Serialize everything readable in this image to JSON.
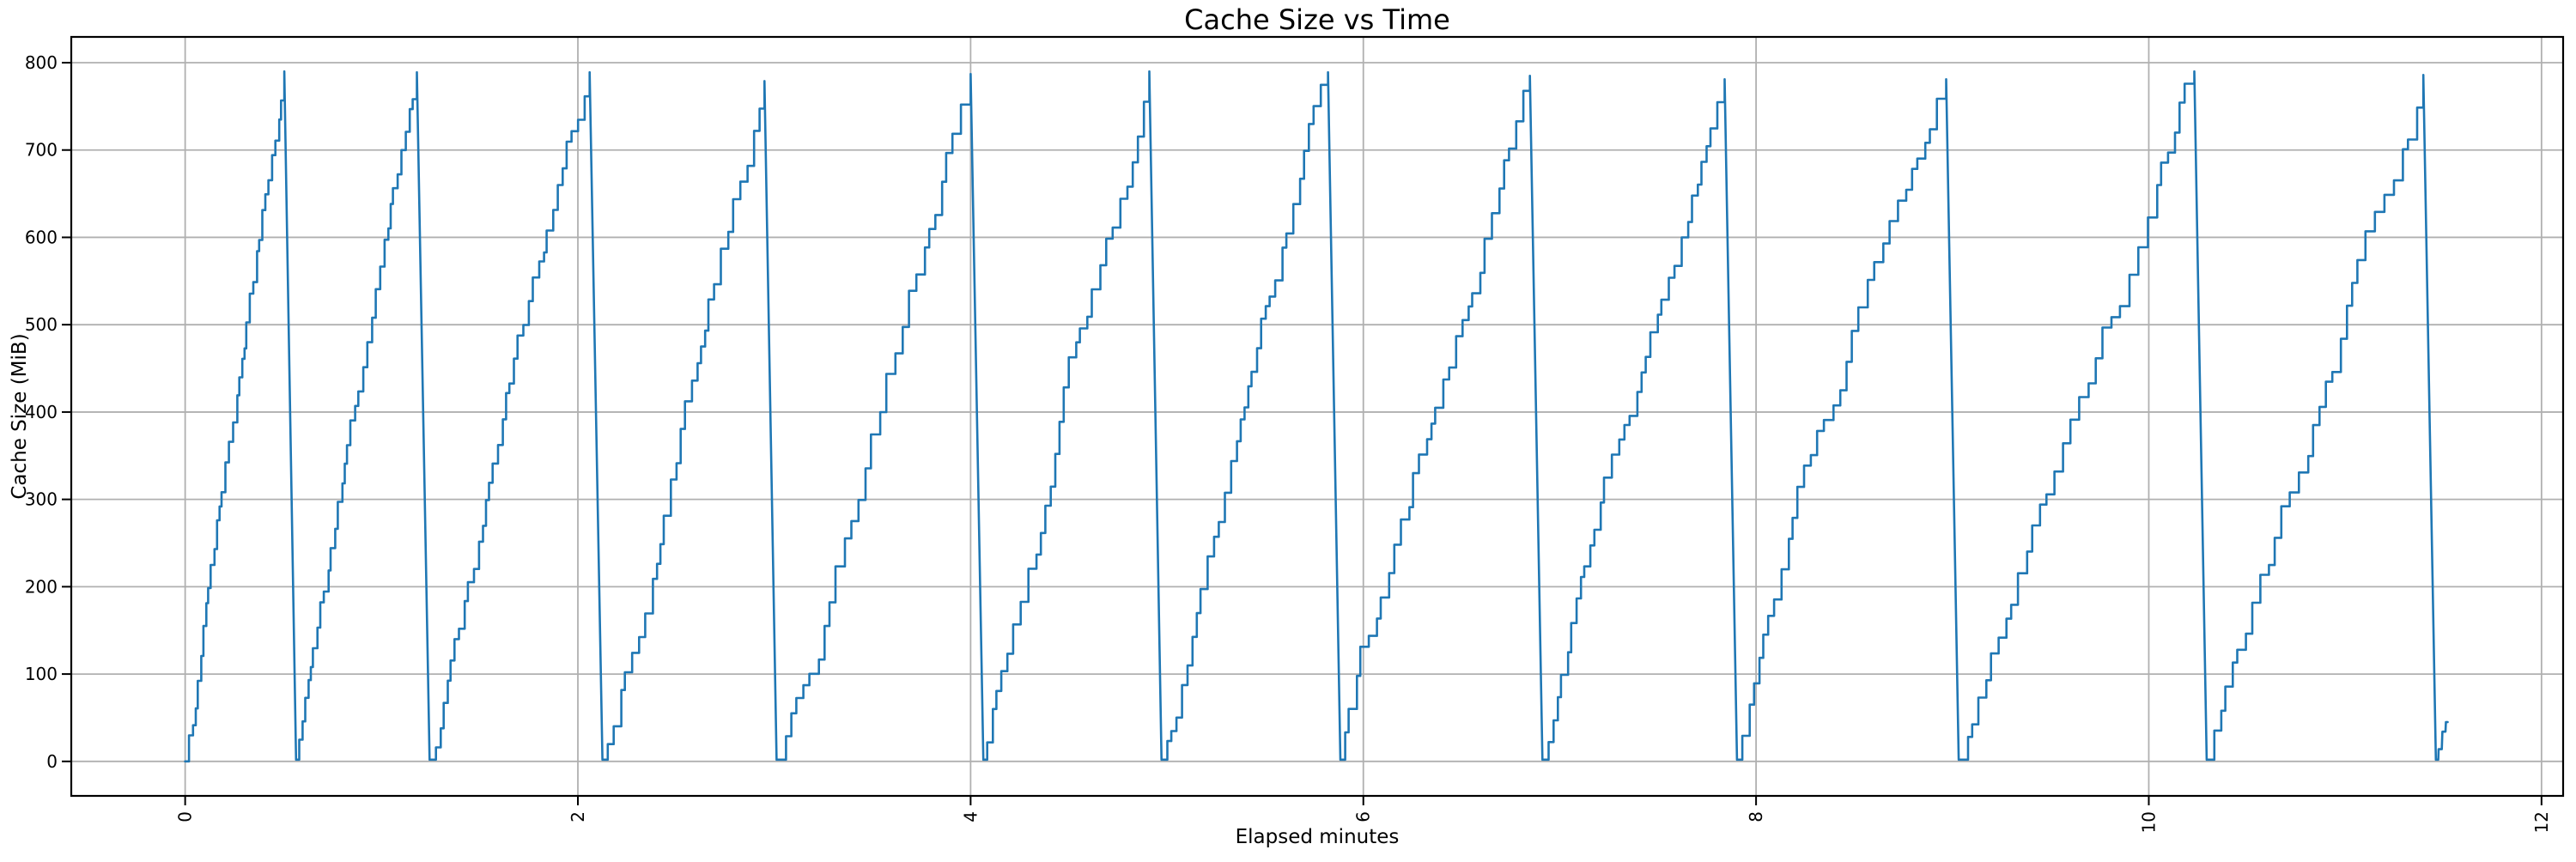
{
  "figure": {
    "title": "Cache Size vs Time",
    "xlabel": "Elapsed minutes",
    "ylabel": "Cache Size (MiB)"
  },
  "colors": {
    "line": "#1f77b4",
    "grid": "#b0b0b0",
    "spine": "#000000",
    "text": "#000000",
    "background": "#ffffff"
  },
  "chart_data": {
    "type": "line",
    "title": "Cache Size vs Time",
    "xlabel": "Elapsed minutes",
    "ylabel": "Cache Size (MiB)",
    "series_name": "cache size",
    "xticks": [
      0,
      2,
      4,
      6,
      8,
      10,
      12
    ],
    "yticks": [
      0,
      100,
      200,
      300,
      400,
      500,
      600,
      700,
      800
    ],
    "xlim": [
      -0.58,
      12.11
    ],
    "ylim": [
      -39.5,
      829.5
    ],
    "grid": true,
    "legend": false,
    "x_tick_rotation_deg": 90,
    "pattern": "stepped sawtooth: cache fills from ~0 to ~790 MiB in irregular ~20-35 MiB steps every ~2s, then is evicted abruptly to ~0 and refills; 12 cycles over ~11.5 minutes",
    "steps_per_fill": 30,
    "cycles": [
      {
        "start_min": 0.0,
        "start_mib": 0,
        "peak_min": 0.505,
        "peak_mib": 790,
        "reset_min": 0.565,
        "reset_mib": 2
      },
      {
        "start_min": 0.565,
        "start_mib": 2,
        "peak_min": 1.18,
        "peak_mib": 789,
        "reset_min": 1.245,
        "reset_mib": 2
      },
      {
        "start_min": 1.245,
        "start_mib": 2,
        "peak_min": 2.06,
        "peak_mib": 789,
        "reset_min": 2.125,
        "reset_mib": 2
      },
      {
        "start_min": 2.125,
        "start_mib": 2,
        "peak_min": 2.95,
        "peak_mib": 779,
        "reset_min": 3.012,
        "reset_mib": 2
      },
      {
        "start_min": 3.012,
        "start_mib": 2,
        "peak_min": 4.0,
        "peak_mib": 787,
        "reset_min": 4.065,
        "reset_mib": 2
      },
      {
        "start_min": 4.065,
        "start_mib": 2,
        "peak_min": 4.91,
        "peak_mib": 790,
        "reset_min": 4.972,
        "reset_mib": 2
      },
      {
        "start_min": 4.972,
        "start_mib": 2,
        "peak_min": 5.82,
        "peak_mib": 789,
        "reset_min": 5.883,
        "reset_mib": 2
      },
      {
        "start_min": 5.883,
        "start_mib": 2,
        "peak_min": 6.848,
        "peak_mib": 785,
        "reset_min": 6.912,
        "reset_mib": 2
      },
      {
        "start_min": 6.912,
        "start_mib": 2,
        "peak_min": 7.84,
        "peak_mib": 781,
        "reset_min": 7.903,
        "reset_mib": 2
      },
      {
        "start_min": 7.903,
        "start_mib": 2,
        "peak_min": 8.968,
        "peak_mib": 781,
        "reset_min": 9.032,
        "reset_mib": 2
      },
      {
        "start_min": 9.032,
        "start_mib": 2,
        "peak_min": 10.232,
        "peak_mib": 790,
        "reset_min": 10.295,
        "reset_mib": 2
      },
      {
        "start_min": 10.295,
        "start_mib": 2,
        "peak_min": 11.398,
        "peak_mib": 786,
        "reset_min": 11.462,
        "reset_mib": 2
      }
    ],
    "tail_points": [
      [
        11.474,
        2
      ],
      [
        11.476,
        14
      ],
      [
        11.492,
        14
      ],
      [
        11.495,
        34
      ],
      [
        11.511,
        34
      ],
      [
        11.513,
        45
      ],
      [
        11.522,
        45
      ]
    ]
  }
}
